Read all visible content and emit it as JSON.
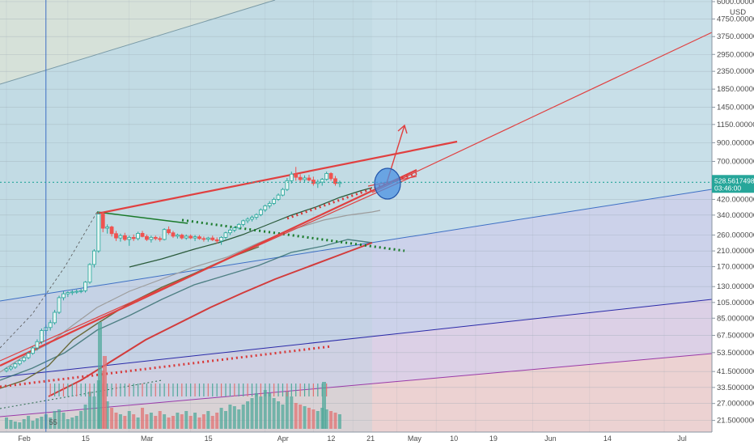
{
  "chart_data": {
    "type": "candlestick",
    "currency": "USD",
    "y_scale": "log",
    "ylim": [
      20.5,
      6000
    ],
    "y_ticks": [
      {
        "label": "6000.0000000",
        "value": 6000
      },
      {
        "label": "4750.0000000",
        "value": 4750
      },
      {
        "label": "3750.0000000",
        "value": 3750
      },
      {
        "label": "2950.0000000",
        "value": 2950
      },
      {
        "label": "2350.0000000",
        "value": 2350
      },
      {
        "label": "1850.0000000",
        "value": 1850
      },
      {
        "label": "1450.0000000",
        "value": 1450
      },
      {
        "label": "1150.0000000",
        "value": 1150
      },
      {
        "label": "900.0000000",
        "value": 900
      },
      {
        "label": "700.0000000",
        "value": 700
      },
      {
        "label": "420.0000000",
        "value": 420
      },
      {
        "label": "340.0000000",
        "value": 340
      },
      {
        "label": "260.0000000",
        "value": 260
      },
      {
        "label": "210.0000000",
        "value": 210
      },
      {
        "label": "170.0000000",
        "value": 170
      },
      {
        "label": "130.0000000",
        "value": 130
      },
      {
        "label": "105.0000000",
        "value": 105
      },
      {
        "label": "85.0000000",
        "value": 85
      },
      {
        "label": "67.5000000",
        "value": 67.5
      },
      {
        "label": "53.5000000",
        "value": 53.5
      },
      {
        "label": "41.5000000",
        "value": 41.5
      },
      {
        "label": "33.5000000",
        "value": 33.5
      },
      {
        "label": "27.0000000",
        "value": 27
      },
      {
        "label": "21.5000000",
        "value": 21.5
      }
    ],
    "x_ticks": [
      {
        "label": "Feb",
        "day": 0
      },
      {
        "label": "15",
        "day": 14
      },
      {
        "label": "Mar",
        "day": 28
      },
      {
        "label": "15",
        "day": 42
      },
      {
        "label": "Apr",
        "day": 59
      },
      {
        "label": "12",
        "day": 70
      },
      {
        "label": "21",
        "day": 79
      },
      {
        "label": "May",
        "day": 89
      },
      {
        "label": "10",
        "day": 98
      },
      {
        "label": "19",
        "day": 107
      },
      {
        "label": "Jun",
        "day": 120
      },
      {
        "label": "14",
        "day": 133
      },
      {
        "label": "Jul",
        "day": 150
      }
    ],
    "current_price": {
      "label": "528.5617498",
      "value": 528.56,
      "countdown": "03:46:00"
    },
    "cursor_day": 9,
    "cursor_label": "55",
    "series": [
      {
        "name": "",
        "values": [
          [
            0,
            42,
            44,
            41,
            43
          ],
          [
            1,
            43,
            45,
            42,
            44
          ],
          [
            2,
            44,
            47,
            43,
            46
          ],
          [
            3,
            46,
            49,
            45,
            48
          ],
          [
            4,
            48,
            51,
            47,
            50
          ],
          [
            5,
            50,
            54,
            49,
            53
          ],
          [
            6,
            53,
            58,
            52,
            57
          ],
          [
            7,
            57,
            64,
            55,
            62
          ],
          [
            8,
            62,
            74,
            60,
            72
          ],
          [
            9,
            72,
            78,
            68,
            75
          ],
          [
            10,
            75,
            83,
            72,
            80
          ],
          [
            11,
            80,
            95,
            78,
            92
          ],
          [
            12,
            92,
            115,
            90,
            112
          ],
          [
            13,
            112,
            122,
            108,
            118
          ],
          [
            14,
            118,
            122,
            113,
            120
          ],
          [
            15,
            120,
            124,
            116,
            121
          ],
          [
            16,
            121,
            125,
            118,
            122
          ],
          [
            17,
            122,
            126,
            119,
            123
          ],
          [
            18,
            123,
            140,
            120,
            138
          ],
          [
            19,
            138,
            178,
            135,
            175
          ],
          [
            20,
            175,
            215,
            168,
            210
          ],
          [
            21,
            210,
            355,
            205,
            345
          ],
          [
            22,
            345,
            355,
            270,
            285
          ],
          [
            23,
            285,
            300,
            265,
            290
          ],
          [
            24,
            290,
            295,
            255,
            265
          ],
          [
            25,
            265,
            275,
            240,
            250
          ],
          [
            26,
            250,
            265,
            238,
            258
          ],
          [
            27,
            258,
            268,
            240,
            245
          ],
          [
            28,
            245,
            258,
            225,
            252
          ],
          [
            29,
            252,
            262,
            240,
            248
          ],
          [
            30,
            248,
            272,
            242,
            266
          ],
          [
            31,
            266,
            275,
            252,
            255
          ],
          [
            32,
            255,
            262,
            240,
            245
          ],
          [
            33,
            245,
            258,
            235,
            252
          ],
          [
            34,
            252,
            258,
            242,
            248
          ],
          [
            35,
            248,
            255,
            238,
            245
          ],
          [
            36,
            245,
            285,
            242,
            280
          ],
          [
            37,
            280,
            292,
            262,
            268
          ],
          [
            38,
            268,
            275,
            250,
            256
          ],
          [
            39,
            256,
            265,
            248,
            260
          ],
          [
            40,
            260,
            265,
            245,
            250
          ],
          [
            41,
            250,
            262,
            244,
            256
          ],
          [
            42,
            256,
            262,
            246,
            250
          ],
          [
            43,
            250,
            260,
            240,
            254
          ],
          [
            44,
            254,
            260,
            244,
            248
          ],
          [
            45,
            248,
            255,
            238,
            246
          ],
          [
            46,
            246,
            254,
            238,
            250
          ],
          [
            47,
            250,
            258,
            240,
            244
          ],
          [
            48,
            244,
            252,
            232,
            240
          ],
          [
            49,
            240,
            256,
            228,
            252
          ],
          [
            50,
            252,
            272,
            246,
            268
          ],
          [
            51,
            268,
            284,
            260,
            278
          ],
          [
            52,
            278,
            292,
            270,
            286
          ],
          [
            53,
            286,
            305,
            280,
            300
          ],
          [
            54,
            300,
            320,
            292,
            315
          ],
          [
            55,
            315,
            330,
            305,
            322
          ],
          [
            56,
            322,
            338,
            312,
            330
          ],
          [
            57,
            330,
            348,
            320,
            342
          ],
          [
            58,
            342,
            372,
            335,
            365
          ],
          [
            59,
            365,
            392,
            355,
            385
          ],
          [
            60,
            385,
            410,
            372,
            398
          ],
          [
            61,
            398,
            430,
            390,
            420
          ],
          [
            62,
            420,
            455,
            412,
            445
          ],
          [
            63,
            445,
            490,
            438,
            480
          ],
          [
            64,
            480,
            560,
            470,
            540
          ],
          [
            65,
            540,
            610,
            520,
            590
          ],
          [
            66,
            590,
            650,
            540,
            565
          ],
          [
            67,
            565,
            590,
            530,
            548
          ],
          [
            68,
            548,
            580,
            525,
            560
          ],
          [
            69,
            560,
            585,
            535,
            545
          ],
          [
            70,
            545,
            570,
            505,
            520
          ],
          [
            71,
            520,
            548,
            490,
            530
          ],
          [
            72,
            530,
            560,
            505,
            550
          ],
          [
            73,
            550,
            610,
            540,
            595
          ],
          [
            74,
            595,
            605,
            540,
            555
          ],
          [
            75,
            555,
            575,
            505,
            520
          ],
          [
            76,
            520,
            540,
            495,
            528
          ]
        ]
      }
    ],
    "annotations": [
      "predicted breakout arrow",
      "ascending wedge",
      "moving averages",
      "regression channel"
    ]
  }
}
